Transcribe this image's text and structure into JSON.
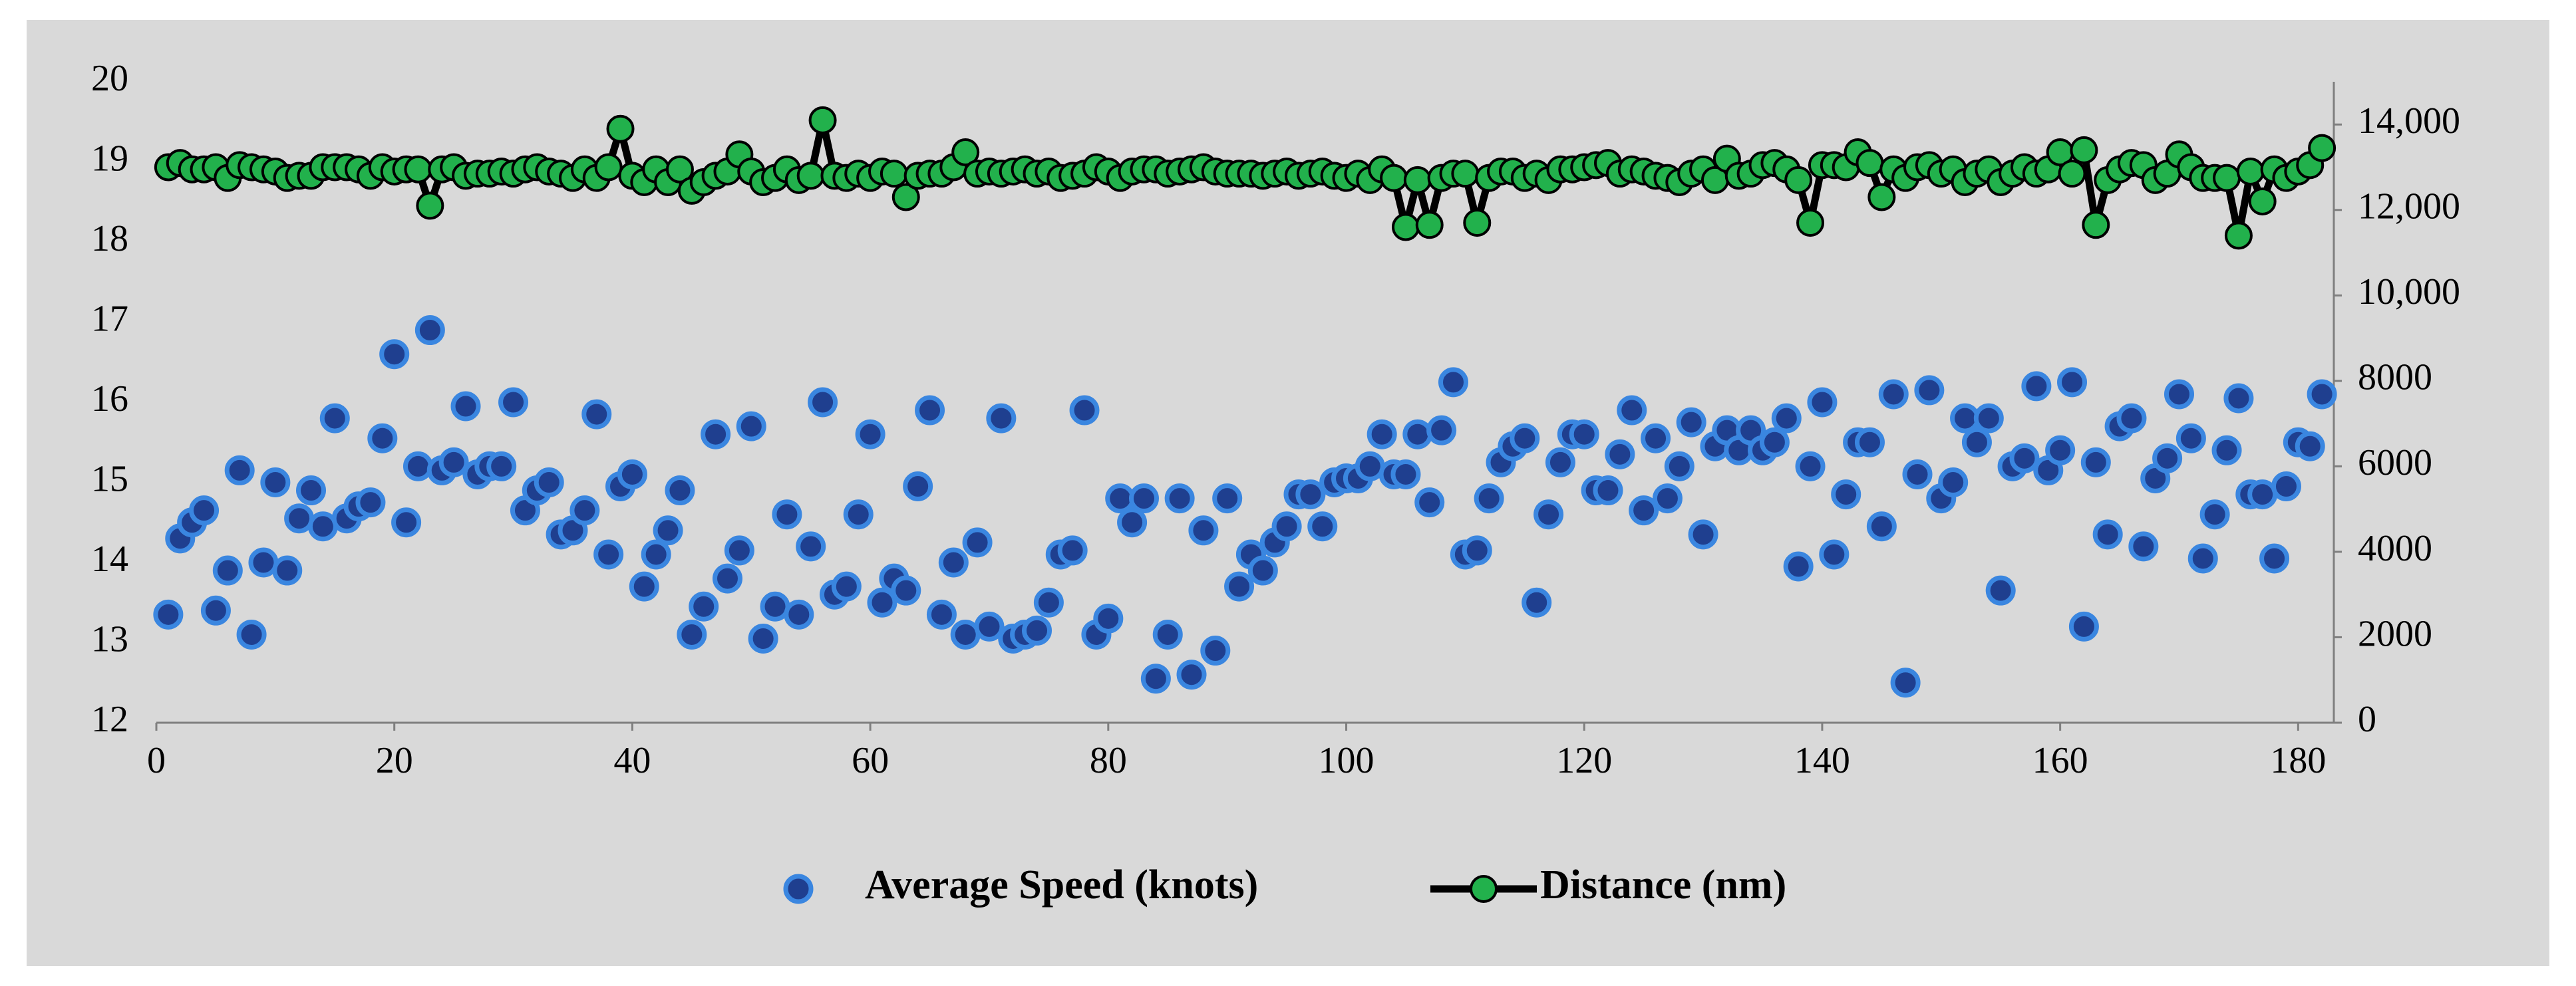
{
  "chart_data": {
    "type": "combo",
    "x": [
      1,
      2,
      3,
      4,
      5,
      6,
      7,
      8,
      9,
      10,
      11,
      12,
      13,
      14,
      15,
      16,
      17,
      18,
      19,
      20,
      21,
      22,
      23,
      24,
      25,
      26,
      27,
      28,
      29,
      30,
      31,
      32,
      33,
      34,
      35,
      36,
      37,
      38,
      39,
      40,
      41,
      42,
      43,
      44,
      45,
      46,
      47,
      48,
      49,
      50,
      51,
      52,
      53,
      54,
      55,
      56,
      57,
      58,
      59,
      60,
      61,
      62,
      63,
      64,
      65,
      66,
      67,
      68,
      69,
      70,
      71,
      72,
      73,
      74,
      75,
      76,
      77,
      78,
      79,
      80,
      81,
      82,
      83,
      84,
      85,
      86,
      87,
      88,
      89,
      90,
      91,
      92,
      93,
      94,
      95,
      96,
      97,
      98,
      99,
      100,
      101,
      102,
      103,
      104,
      105,
      106,
      107,
      108,
      109,
      110,
      111,
      112,
      113,
      114,
      115,
      116,
      117,
      118,
      119,
      120,
      121,
      122,
      123,
      124,
      125,
      126,
      127,
      128,
      129,
      130,
      131,
      132,
      133,
      134,
      135,
      136,
      137,
      138,
      139,
      140,
      141,
      142,
      143,
      144,
      145,
      146,
      147,
      148,
      149,
      150,
      151,
      152,
      153,
      154,
      155,
      156,
      157,
      158,
      159,
      160,
      161,
      162,
      163,
      164,
      165,
      166,
      167,
      168,
      169,
      170,
      171,
      172,
      173,
      174,
      175,
      176,
      177,
      178,
      179,
      180,
      181,
      182
    ],
    "series": [
      {
        "name": "Average Speed (knots)",
        "type": "scatter",
        "color": "#1f3f8f",
        "edge_color": "#3a86e0",
        "values": [
          13.35,
          14.3,
          14.5,
          14.65,
          13.4,
          13.9,
          15.15,
          13.1,
          14.0,
          15.0,
          13.9,
          14.55,
          14.9,
          14.45,
          15.8,
          14.55,
          14.7,
          14.75,
          15.55,
          16.6,
          14.5,
          15.2,
          16.9,
          15.15,
          15.25,
          15.95,
          15.1,
          15.2,
          15.2,
          16.0,
          14.65,
          14.9,
          15.0,
          14.35,
          14.4,
          14.65,
          15.85,
          14.1,
          14.95,
          15.1,
          13.7,
          14.1,
          14.4,
          14.9,
          13.1,
          13.45,
          15.6,
          13.8,
          14.15,
          15.7,
          13.05,
          13.45,
          14.6,
          13.35,
          14.2,
          16.0,
          13.6,
          13.7,
          14.6,
          15.6,
          13.5,
          13.8,
          13.65,
          14.95,
          15.9,
          13.35,
          14.0,
          13.1,
          14.25,
          13.2,
          15.8,
          13.05,
          13.1,
          13.15,
          13.5,
          14.1,
          14.15,
          15.9,
          13.1,
          13.3,
          14.8,
          14.5,
          14.8,
          12.55,
          13.1,
          14.8,
          12.6,
          14.4,
          12.9,
          14.8,
          13.7,
          14.1,
          13.9,
          14.25,
          14.45,
          14.85,
          14.85,
          14.45,
          15.0,
          15.05,
          15.05,
          15.2,
          15.6,
          15.1,
          15.1,
          15.6,
          14.75,
          15.65,
          16.25,
          14.1,
          14.15,
          14.8,
          15.25,
          15.45,
          15.55,
          13.5,
          14.6,
          15.25,
          15.6,
          15.6,
          14.9,
          14.9,
          15.35,
          15.9,
          14.65,
          15.55,
          14.8,
          15.2,
          15.75,
          14.35,
          15.45,
          15.65,
          15.4,
          15.65,
          15.4,
          15.5,
          15.8,
          13.95,
          15.2,
          16.0,
          14.1,
          14.85,
          15.5,
          15.5,
          14.45,
          16.1,
          12.5,
          15.1,
          16.15,
          14.8,
          15.0,
          15.8,
          15.5,
          15.8,
          13.65,
          15.2,
          15.3,
          16.2,
          15.15,
          15.4,
          16.25,
          13.2,
          15.25,
          14.35,
          15.7,
          15.8,
          14.2,
          15.05,
          15.3,
          16.1,
          15.55,
          14.05,
          14.6,
          15.4,
          16.05,
          14.85,
          14.85,
          14.05,
          14.95,
          15.5,
          15.45,
          16.1
        ]
      },
      {
        "name": "Distance (nm)",
        "type": "line",
        "axis": "y2",
        "color": "#22b14c",
        "line_color": "#000000",
        "values": [
          13000,
          13100,
          12950,
          12950,
          13000,
          12750,
          13050,
          13000,
          12950,
          12900,
          12750,
          12800,
          12800,
          13000,
          13000,
          13000,
          12950,
          12800,
          13000,
          12900,
          12950,
          12950,
          12100,
          12950,
          13000,
          12800,
          12850,
          12850,
          12900,
          12850,
          12950,
          13000,
          12900,
          12850,
          12750,
          12950,
          12750,
          13000,
          13900,
          12800,
          12650,
          12950,
          12650,
          12950,
          12450,
          12650,
          12800,
          12900,
          13300,
          12900,
          12650,
          12750,
          12950,
          12700,
          12800,
          14100,
          12800,
          12750,
          12850,
          12750,
          12900,
          12850,
          12300,
          12800,
          12850,
          12850,
          13000,
          13350,
          12850,
          12900,
          12850,
          12900,
          12950,
          12850,
          12900,
          12750,
          12800,
          12850,
          13000,
          12900,
          12750,
          12900,
          12950,
          12950,
          12850,
          12900,
          12950,
          13000,
          12900,
          12850,
          12850,
          12850,
          12800,
          12850,
          12900,
          12800,
          12850,
          12900,
          12800,
          12750,
          12850,
          12700,
          12950,
          12750,
          11600,
          12700,
          11650,
          12750,
          12850,
          12850,
          11700,
          12750,
          12900,
          12900,
          12750,
          12850,
          12700,
          12950,
          12950,
          13000,
          13050,
          13100,
          12850,
          12950,
          12900,
          12800,
          12750,
          12650,
          12850,
          12950,
          12700,
          13200,
          12800,
          12850,
          13050,
          13100,
          12950,
          12700,
          11700,
          13050,
          13050,
          13000,
          13350,
          13100,
          12300,
          12950,
          12750,
          13000,
          13050,
          12850,
          12950,
          12650,
          12850,
          12950,
          12650,
          12850,
          13000,
          12850,
          12950,
          13350,
          12850,
          13400,
          11650,
          12700,
          12950,
          13100,
          13050,
          12700,
          12850,
          13300,
          13000,
          12750,
          12750,
          12750,
          11400,
          12900,
          12200,
          12950,
          12750,
          12900,
          13050,
          13450
        ]
      }
    ],
    "xlim": [
      0,
      183
    ],
    "xticks": [
      0,
      20,
      40,
      60,
      80,
      100,
      120,
      140,
      160,
      180
    ],
    "ylim": [
      12,
      20
    ],
    "yticks": [
      12,
      13,
      14,
      15,
      16,
      17,
      18,
      19,
      20
    ],
    "y2lim": [
      0,
      15000
    ],
    "y2ticks": [
      0,
      2000,
      4000,
      6000,
      8000,
      {
        "value": 10000,
        "label": "10,000"
      },
      {
        "value": 12000,
        "label": "12,000"
      },
      {
        "value": 14000,
        "label": "14,000"
      }
    ],
    "legend": "bottom"
  }
}
